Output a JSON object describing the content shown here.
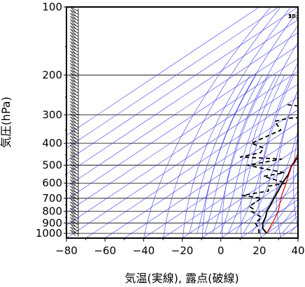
{
  "chart_data": {
    "type": "line",
    "chart_style": "skew-T log-p emagram",
    "title": "",
    "xlabel": "気温(実線), 露点(破線)",
    "ylabel": "気圧(hPa)",
    "xlim": [
      -80,
      40
    ],
    "ylim": [
      1050,
      100
    ],
    "y_scale": "log",
    "x_ticks": [
      -80,
      -60,
      -40,
      -20,
      0,
      20,
      40
    ],
    "x_tick_labels": [
      "−80",
      "−60",
      "−40",
      "−20",
      "0",
      "20",
      "40"
    ],
    "y_ticks": [
      100,
      200,
      300,
      400,
      500,
      600,
      700,
      800,
      900,
      1000
    ],
    "y_tick_labels": [
      "100",
      "200",
      "300",
      "400",
      "500",
      "600",
      "700",
      "800",
      "900",
      "1000"
    ],
    "mixing_ratio_labels": [
      {
        "value": 1,
        "text": "1"
      },
      {
        "value": 5,
        "text": "5"
      },
      {
        "value": 10,
        "text": "10"
      },
      {
        "value": 15,
        "text": "15"
      },
      {
        "value": 20,
        "text": "20g"
      }
    ],
    "grid": true,
    "colors": {
      "temperature": "#000000",
      "dewpoint": "#000000",
      "parcel": "#e00000",
      "adiabats": "#3a3aee",
      "grid": "#000000"
    },
    "series": [
      {
        "role": "temperature",
        "style": "solid",
        "points": [
          [
            1000,
            20
          ],
          [
            950,
            14
          ],
          [
            900,
            10
          ],
          [
            850,
            7
          ],
          [
            800,
            3
          ],
          [
            750,
            0
          ],
          [
            700,
            -3.5
          ],
          [
            650,
            -7
          ],
          [
            600,
            -11
          ],
          [
            550,
            -14.5
          ],
          [
            500,
            -20
          ],
          [
            450,
            -24
          ],
          [
            400,
            -28.5
          ],
          [
            350,
            -32
          ],
          [
            300,
            -34
          ],
          [
            250,
            -42
          ],
          [
            200,
            -51
          ],
          [
            175,
            -57
          ],
          [
            150,
            -59
          ],
          [
            125,
            -62
          ],
          [
            110,
            -65
          ],
          [
            100,
            -64
          ]
        ]
      },
      {
        "role": "dewpoint",
        "style": "dashed",
        "points": [
          [
            1000,
            16
          ],
          [
            950,
            12
          ],
          [
            900,
            6
          ],
          [
            850,
            5
          ],
          [
            800,
            -5
          ],
          [
            780,
            -6
          ],
          [
            760,
            -10
          ],
          [
            720,
            -10
          ],
          [
            700,
            -10
          ],
          [
            680,
            -22
          ],
          [
            650,
            -12
          ],
          [
            620,
            -16
          ],
          [
            600,
            -9
          ],
          [
            560,
            -26
          ],
          [
            540,
            -18
          ],
          [
            500,
            -43
          ],
          [
            470,
            -30
          ],
          [
            460,
            -53
          ],
          [
            440,
            -46
          ],
          [
            420,
            -48
          ],
          [
            400,
            -58
          ],
          [
            350,
            -53
          ],
          [
            320,
            -63
          ],
          [
            310,
            -58
          ],
          [
            300,
            -34
          ],
          [
            290,
            -32
          ],
          [
            270,
            -70
          ]
        ]
      },
      {
        "role": "parcel",
        "style": "solid",
        "points": [
          [
            1000,
            20
          ],
          [
            900,
            15
          ],
          [
            800,
            9
          ],
          [
            700,
            0
          ],
          [
            600,
            -9
          ],
          [
            500,
            -20
          ],
          [
            400,
            -31
          ],
          [
            300,
            -44
          ],
          [
            200,
            -68
          ],
          [
            170,
            -78
          ]
        ]
      }
    ]
  }
}
